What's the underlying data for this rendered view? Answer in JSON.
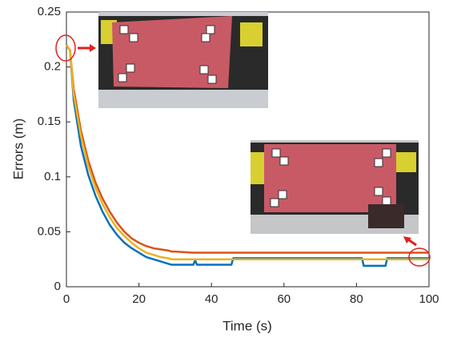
{
  "chart_data": {
    "type": "line",
    "x_label": "Time (s)",
    "y_label": "Errors (m)",
    "x": [
      0,
      1,
      2,
      4,
      6,
      8,
      10,
      12,
      14,
      16,
      18,
      20,
      22,
      24,
      26,
      28,
      29,
      30,
      35,
      35.5,
      36,
      45.5,
      46,
      60,
      81.5,
      82,
      88,
      88.5,
      100
    ],
    "series": [
      {
        "color": "#0072bd",
        "values": [
          0.22,
          0.215,
          0.17,
          0.128,
          0.102,
          0.083,
          0.068,
          0.056,
          0.047,
          0.04,
          0.035,
          0.031,
          0.027,
          0.025,
          0.023,
          0.021,
          0.02,
          0.02,
          0.02,
          0.024,
          0.02,
          0.02,
          0.026,
          0.026,
          0.026,
          0.019,
          0.019,
          0.026,
          0.026
        ]
      },
      {
        "color": "#d95319",
        "values": [
          0.22,
          0.215,
          0.18,
          0.142,
          0.115,
          0.095,
          0.08,
          0.068,
          0.058,
          0.05,
          0.044,
          0.04,
          0.037,
          0.035,
          0.034,
          0.033,
          0.032,
          0.032,
          0.031,
          0.031,
          0.031,
          0.031,
          0.031,
          0.031,
          0.031,
          0.031,
          0.031,
          0.031,
          0.031
        ]
      },
      {
        "color": "#edb120",
        "values": [
          0.22,
          0.215,
          0.175,
          0.137,
          0.11,
          0.09,
          0.075,
          0.063,
          0.053,
          0.046,
          0.04,
          0.035,
          0.031,
          0.029,
          0.027,
          0.026,
          0.025,
          0.025,
          0.025,
          0.025,
          0.025,
          0.025,
          0.025,
          0.025,
          0.025,
          0.025,
          0.025,
          0.025,
          0.025
        ]
      }
    ],
    "xlim": [
      0,
      100
    ],
    "xticks": [
      0,
      20,
      40,
      60,
      80,
      100
    ],
    "ylim": [
      0,
      0.25
    ],
    "yticks": [
      0,
      0.05,
      0.1,
      0.15,
      0.2,
      0.25
    ]
  }
}
